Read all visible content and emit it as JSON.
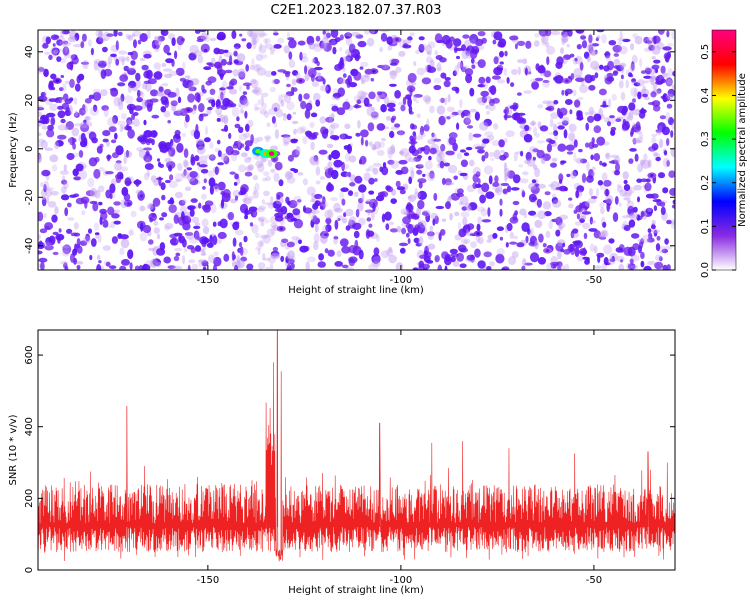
{
  "figure": {
    "title": "C2E1.2023.182.07.37.R03"
  },
  "chart_data": [
    {
      "type": "heatmap",
      "title": "C2E1.2023.182.07.37.R03",
      "xlabel": "Height of straight line (km)",
      "ylabel": "Frequency (Hz)",
      "xlim": [
        -194,
        -29
      ],
      "ylim": [
        -50,
        49
      ],
      "x_ticks": [
        -150,
        -100,
        -50
      ],
      "y_ticks": [
        -40,
        -20,
        0,
        20,
        40
      ],
      "grid": false,
      "colorbar": {
        "label": "Normalized spectral amplitude",
        "range": [
          0.0,
          0.55
        ],
        "ticks": [
          0.0,
          0.1,
          0.2,
          0.3,
          0.4,
          0.5
        ],
        "colormap": [
          "#ffffff",
          "#8a2be2",
          "#0000ff",
          "#00ffff",
          "#00ff00",
          "#ffff00",
          "#ff0000",
          "#ff0080"
        ]
      },
      "background_level": 0.06,
      "gap_x_range": [
        -138,
        -133
      ],
      "peak": {
        "x": -133.5,
        "y": -2,
        "value": 0.55
      },
      "spots": [
        {
          "x": -189,
          "y": 28,
          "value": 0.13
        },
        {
          "x": -155,
          "y": 16,
          "value": 0.12
        },
        {
          "x": -137,
          "y": -1,
          "value": 0.34
        },
        {
          "x": -135,
          "y": -2,
          "value": 0.42
        },
        {
          "x": -133.5,
          "y": -2,
          "value": 0.55
        },
        {
          "x": -131,
          "y": -33,
          "value": 0.11
        },
        {
          "x": -126,
          "y": 28,
          "value": 0.11
        },
        {
          "x": -107,
          "y": 32,
          "value": 0.12
        },
        {
          "x": -101,
          "y": 45,
          "value": 0.1
        },
        {
          "x": -80,
          "y": -35,
          "value": 0.12
        },
        {
          "x": -62,
          "y": -42,
          "value": 0.1
        },
        {
          "x": -57,
          "y": 28,
          "value": 0.1
        },
        {
          "x": -35,
          "y": -11,
          "value": 0.11
        }
      ]
    },
    {
      "type": "line",
      "xlabel": "Height of straight line (km)",
      "ylabel": "SNR (10 * v/v)",
      "xlim": [
        -194,
        -29
      ],
      "ylim": [
        0,
        670
      ],
      "x_ticks": [
        -150,
        -100,
        -50
      ],
      "y_ticks": [
        0,
        200,
        400,
        600
      ],
      "grid": false,
      "series": [
        {
          "color": "#ee2222",
          "typical_floor": 50,
          "typical_ceiling": 240,
          "dip": {
            "x": -131.5,
            "min_value": 20
          },
          "peaks": [
            {
              "x": -171,
              "y": 458
            },
            {
              "x": -133,
              "y": 580
            },
            {
              "x": -132,
              "y": 668
            },
            {
              "x": -131,
              "y": 555
            },
            {
              "x": -105.5,
              "y": 410
            },
            {
              "x": -92,
              "y": 355
            },
            {
              "x": -84,
              "y": 360
            },
            {
              "x": -72,
              "y": 340
            },
            {
              "x": -55,
              "y": 325
            },
            {
              "x": -36,
              "y": 330
            },
            {
              "x": -31,
              "y": 300
            }
          ]
        }
      ]
    }
  ]
}
